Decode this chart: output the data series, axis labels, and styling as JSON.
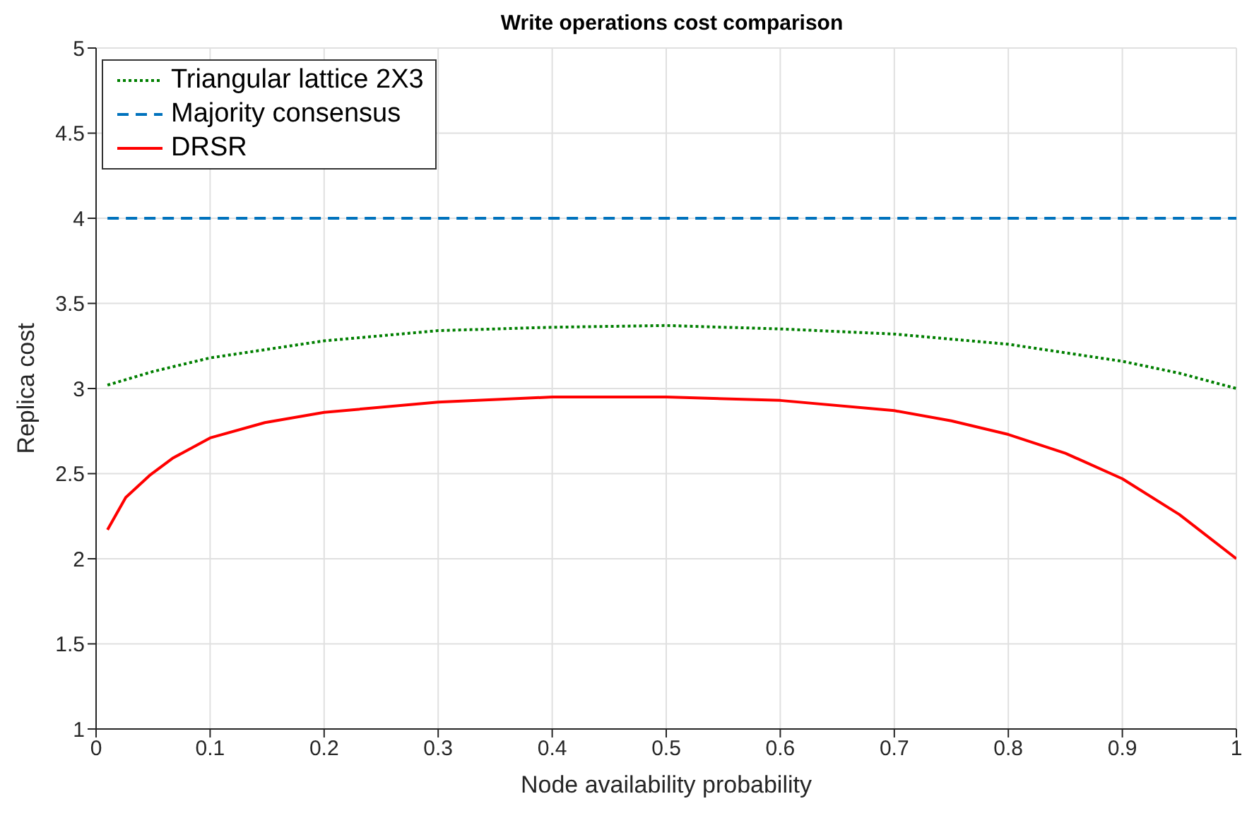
{
  "chart_data": {
    "type": "line",
    "title": "Write operations cost comparison",
    "xlabel": "Node availability probability",
    "ylabel": "Replica cost",
    "xlim": [
      0,
      1
    ],
    "xticks": [
      0,
      0.1,
      0.2,
      0.3,
      0.4,
      0.5,
      0.6,
      0.7,
      0.8,
      0.9,
      1
    ],
    "ylim": [
      1,
      5
    ],
    "yticks": [
      1,
      1.5,
      2,
      2.5,
      3,
      3.5,
      4,
      4.5,
      5
    ],
    "grid": true,
    "legend": "top left",
    "marker": "none",
    "series": [
      {
        "name": "Triangular lattice 2X3",
        "color": "#007f00",
        "line_style": "dotted",
        "x": [
          0.01,
          0.05,
          0.1,
          0.2,
          0.3,
          0.4,
          0.5,
          0.6,
          0.7,
          0.8,
          0.9,
          0.95,
          1
        ],
        "values": [
          3.02,
          3.1,
          3.18,
          3.28,
          3.34,
          3.36,
          3.37,
          3.35,
          3.32,
          3.26,
          3.16,
          3.09,
          3.0
        ]
      },
      {
        "name": "Majority consensus",
        "color": "#0072bd",
        "line_style": "dashed",
        "x": [
          0.01,
          1
        ],
        "values": [
          4,
          4
        ]
      },
      {
        "name": "DRSR",
        "color": "#ff0000",
        "line_style": "solid",
        "x": [
          0.01,
          0.026,
          0.047,
          0.067,
          0.1,
          0.148,
          0.2,
          0.3,
          0.4,
          0.5,
          0.6,
          0.7,
          0.75,
          0.8,
          0.85,
          0.9,
          0.95,
          1
        ],
        "values": [
          2.17,
          2.36,
          2.49,
          2.59,
          2.71,
          2.8,
          2.86,
          2.92,
          2.95,
          2.95,
          2.93,
          2.87,
          2.81,
          2.73,
          2.62,
          2.47,
          2.26,
          2.0
        ]
      }
    ]
  }
}
